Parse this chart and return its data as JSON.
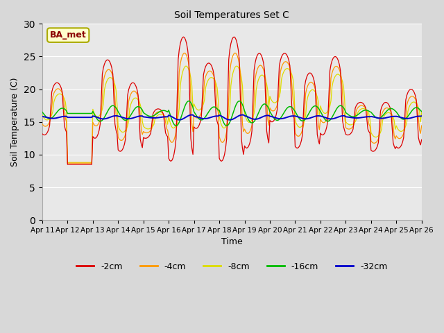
{
  "title": "Soil Temperatures Set C",
  "xlabel": "Time",
  "ylabel": "Soil Temperature (C)",
  "ylim": [
    0,
    30
  ],
  "yticks": [
    0,
    5,
    10,
    15,
    20,
    25,
    30
  ],
  "annotation_text": "BA_met",
  "series_colors": {
    "-2cm": "#dd0000",
    "-4cm": "#ff9900",
    "-8cm": "#dddd00",
    "-16cm": "#00bb00",
    "-32cm": "#0000cc"
  },
  "series_labels": [
    "-2cm",
    "-4cm",
    "-8cm",
    "-16cm",
    "-32cm"
  ],
  "legend_colors": [
    "#dd0000",
    "#ff9900",
    "#dddd00",
    "#00bb00",
    "#0000cc"
  ],
  "plot_bg": "#e8e8e8",
  "fig_bg": "#d8d8d8",
  "grid_color": "#ffffff"
}
